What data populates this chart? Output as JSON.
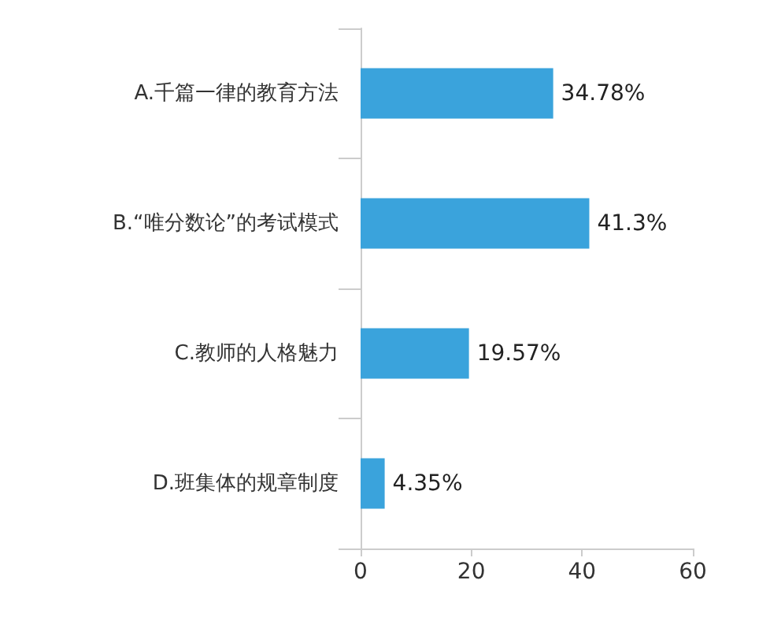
{
  "chart_data": {
    "type": "bar",
    "orientation": "horizontal",
    "categories": [
      "A.千篇一律的教育方法",
      "B.“唯分数论”的考试模式",
      "C.教师的人格魅力",
      "D.班集体的规章制度"
    ],
    "values": [
      34.78,
      41.3,
      19.57,
      4.35
    ],
    "value_labels": [
      "34.78%",
      "41.3%",
      "19.57%",
      "4.35%"
    ],
    "color": "#3aa3dc",
    "xlim": [
      0,
      60
    ],
    "xticks": [
      0,
      20,
      40,
      60
    ],
    "grid": false
  }
}
